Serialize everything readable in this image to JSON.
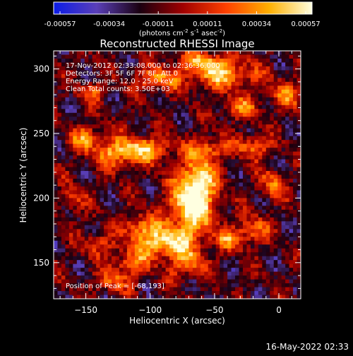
{
  "colorbar": {
    "tick_labels": [
      "-0.00057",
      "-0.00034",
      "-0.00011",
      "0.00011",
      "0.00034",
      "0.00057"
    ],
    "units_prefix": "(photons cm",
    "units_sup1": "-2",
    "units_mid": " s",
    "units_sup2": "-1",
    "units_mid2": " asec",
    "units_sup3": "-2",
    "units_suffix": ")"
  },
  "header": {
    "title": "Reconstructed RHESSI Image",
    "annot_time": "17-Nov-2012 02:33:08.000 to 02:36:36.000",
    "annot_detectors": "Detectors: 3F 5F 6F 7F 8F, Att 0",
    "annot_energy": "Energy Range: 12.0 - 25.0 keV",
    "annot_method": "Clean     Total counts: 3.50E+03",
    "annot_peak": "Position of Peak = [-68,193]"
  },
  "footer": {
    "timestamp": "16-May-2022 02:33"
  },
  "chart_data": {
    "type": "heatmap",
    "title": "Reconstructed RHESSI Image",
    "xlabel": "Heliocentric X (arcsec)",
    "ylabel": "Heliocentric Y (arcsec)",
    "xlim": [
      -175,
      17
    ],
    "ylim": [
      122,
      314
    ],
    "x_ticks": [
      -150,
      -100,
      -50,
      0
    ],
    "x_tick_labels": [
      "−150",
      "−100",
      "−50",
      "0"
    ],
    "y_ticks": [
      150,
      200,
      250,
      300
    ],
    "y_tick_labels": [
      "150",
      "200",
      "250",
      "300"
    ],
    "value_range": [
      -0.00057,
      0.00057
    ],
    "colormap": "blue-purple-black-red-orange-yellow-white",
    "colormap_stops": [
      "#0b1ce6",
      "#5a3fb8",
      "#1a0010",
      "#a00000",
      "#ff4000",
      "#ffb000",
      "#ffffe0"
    ],
    "peak_position": [
      -68,
      193
    ]
  }
}
